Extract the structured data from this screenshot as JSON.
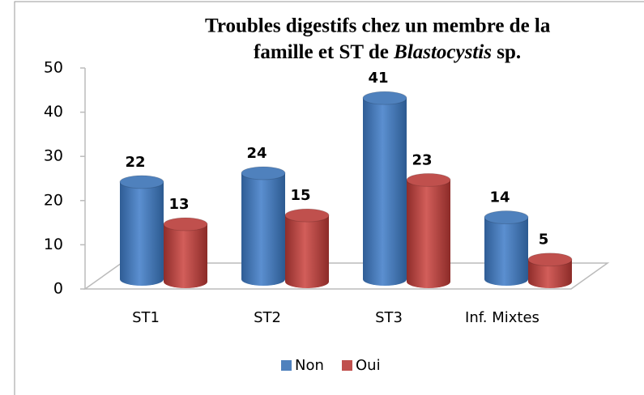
{
  "chart_data": {
    "type": "bar3d",
    "title": [
      "Troubles digestifs chez un membre de la",
      "famille et ST de",
      "Blastocystis",
      "sp."
    ],
    "categories": [
      "ST1",
      "ST2",
      "ST3",
      "Inf. Mixtes"
    ],
    "series": [
      {
        "name": "Non",
        "color": "#4f81bd",
        "values": [
          22,
          24,
          41,
          14
        ]
      },
      {
        "name": "Oui",
        "color": "#c0504d",
        "values": [
          13,
          15,
          23,
          5
        ]
      }
    ],
    "ylim": [
      0,
      50
    ],
    "yticks": [
      0,
      10,
      20,
      30,
      40,
      50
    ],
    "legend": "bottom"
  }
}
